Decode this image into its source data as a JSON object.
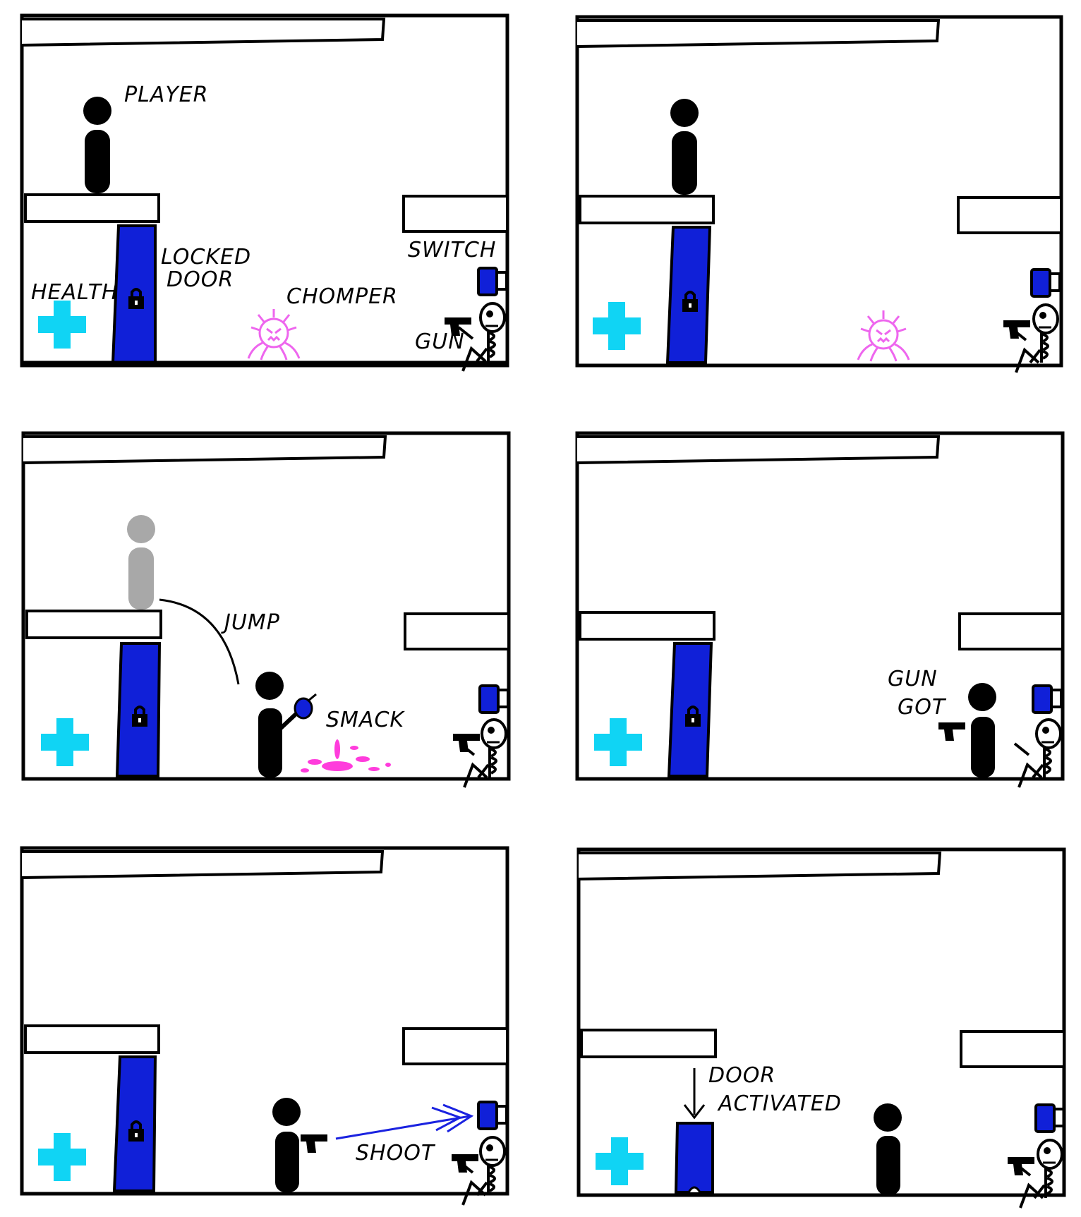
{
  "colors": {
    "ink": "#000000",
    "door": "#1020d8",
    "health": "#10d4f4",
    "chomper": "#ee66ee",
    "smack": "#ff3cdc",
    "ghost": "#a8a8a8",
    "shot": "#1a22e0"
  },
  "panels": [
    {
      "labels": {
        "player": "PLAYER",
        "locked_door_1": "LOCKED",
        "locked_door_2": "DOOR",
        "health": "HEALTH",
        "chomper": "CHOMPER",
        "switch": "SWITCH",
        "gun": "GUN"
      }
    },
    {
      "labels": {}
    },
    {
      "labels": {
        "jump": "JUMP",
        "smack": "SMACK"
      }
    },
    {
      "labels": {
        "gun_got_1": "GUN",
        "gun_got_2": "GOT"
      }
    },
    {
      "labels": {
        "shoot": "SHOOT"
      }
    },
    {
      "labels": {
        "door_activated_1": "DOOR",
        "door_activated_2": "ACTIVATED"
      }
    }
  ],
  "icons": {
    "player": "stick-figure",
    "door": "locked-door-icon",
    "health": "health-cross-icon",
    "chomper": "chomper-enemy",
    "switch": "wall-switch",
    "gun": "pistol-icon",
    "skeleton": "skeleton-with-gun"
  }
}
